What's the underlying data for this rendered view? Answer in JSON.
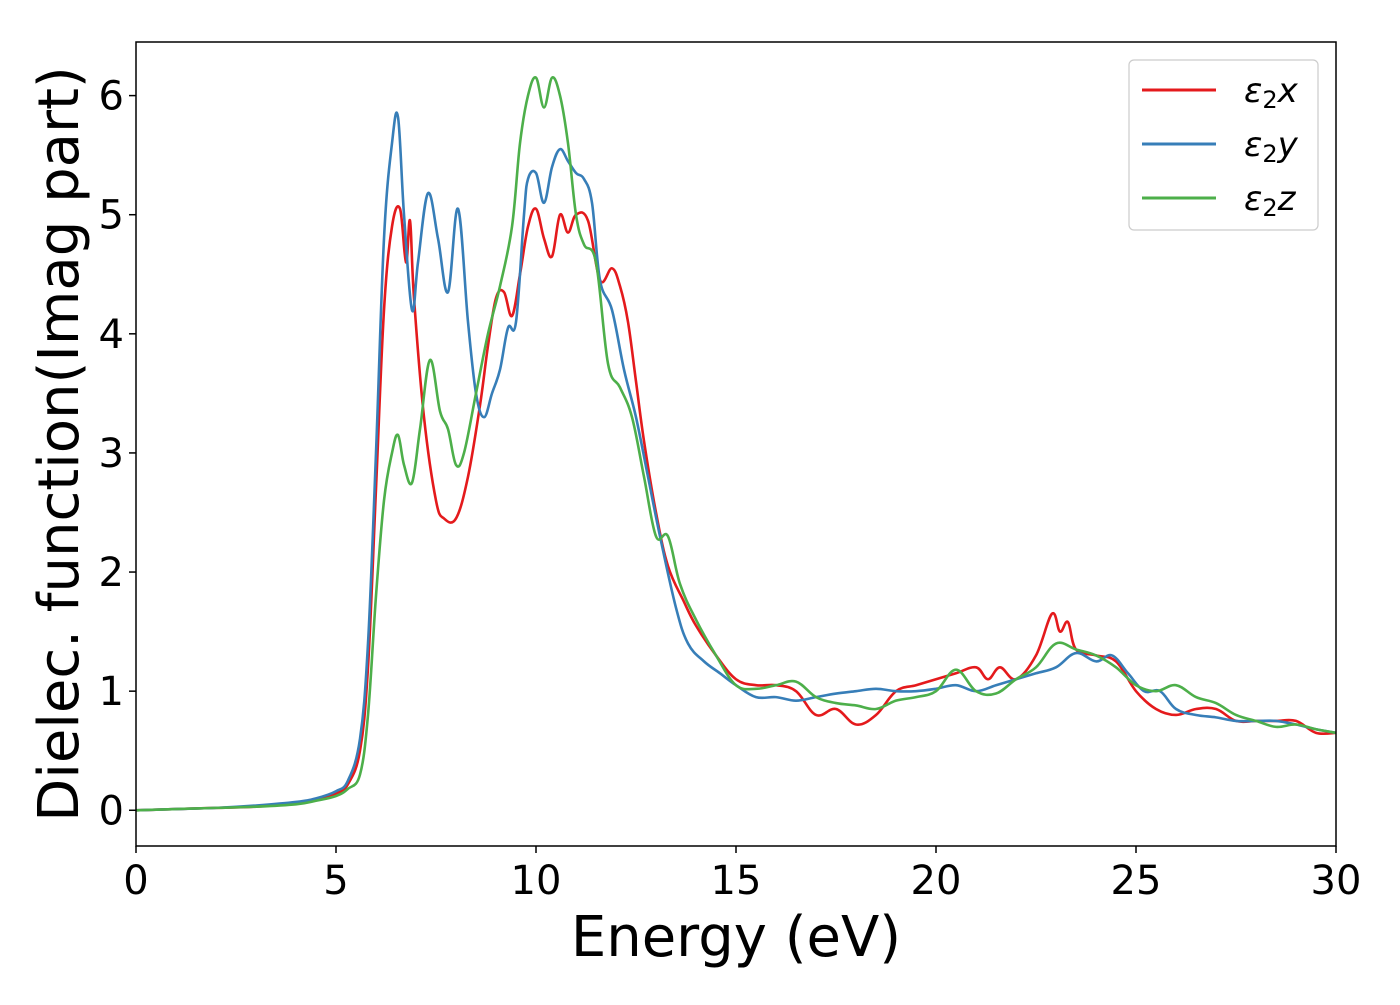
{
  "chart_data": {
    "type": "line",
    "title": "",
    "xlabel": "Energy (eV)",
    "ylabel": "Dielec. function(Imag part)",
    "xlim": [
      0,
      30
    ],
    "ylim": [
      -0.3,
      6.45
    ],
    "xticks": [
      0,
      5,
      10,
      15,
      20,
      25,
      30
    ],
    "yticks": [
      0,
      1,
      2,
      3,
      4,
      5,
      6
    ],
    "grid": false,
    "legend_position": "top-right",
    "series": [
      {
        "name_base": "ε",
        "name_sub": "2",
        "name_suffix": "x",
        "color": "#e41a1c",
        "x": [
          0,
          1,
          2,
          3,
          4,
          4.5,
          5,
          5.3,
          5.6,
          5.8,
          6.0,
          6.2,
          6.4,
          6.6,
          6.75,
          6.85,
          6.95,
          7.2,
          7.5,
          7.7,
          8.0,
          8.3,
          8.6,
          8.8,
          9.0,
          9.2,
          9.4,
          9.6,
          9.8,
          10.0,
          10.2,
          10.4,
          10.6,
          10.8,
          11.0,
          11.3,
          11.6,
          11.9,
          12.1,
          12.3,
          12.5,
          12.7,
          13.0,
          13.3,
          13.7,
          14.0,
          14.5,
          15.0,
          15.5,
          16.0,
          16.5,
          17.0,
          17.5,
          18.0,
          18.5,
          19.0,
          19.5,
          20.0,
          20.5,
          21.0,
          21.3,
          21.6,
          22.0,
          22.5,
          22.9,
          23.1,
          23.3,
          23.5,
          24.0,
          24.5,
          25.0,
          25.5,
          26.0,
          26.5,
          27.0,
          27.5,
          28.0,
          28.5,
          29.0,
          29.5,
          30.0
        ],
        "y": [
          0.0,
          0.01,
          0.02,
          0.03,
          0.06,
          0.09,
          0.14,
          0.22,
          0.5,
          1.2,
          2.7,
          4.2,
          4.9,
          5.05,
          4.6,
          4.95,
          4.3,
          3.3,
          2.6,
          2.45,
          2.45,
          2.8,
          3.4,
          3.9,
          4.3,
          4.35,
          4.15,
          4.5,
          4.9,
          5.05,
          4.8,
          4.65,
          5.0,
          4.85,
          5.0,
          4.95,
          4.45,
          4.55,
          4.4,
          4.1,
          3.6,
          3.1,
          2.5,
          2.05,
          1.75,
          1.55,
          1.3,
          1.1,
          1.05,
          1.05,
          1.0,
          0.8,
          0.85,
          0.72,
          0.8,
          1.0,
          1.05,
          1.1,
          1.15,
          1.2,
          1.1,
          1.2,
          1.1,
          1.3,
          1.65,
          1.5,
          1.58,
          1.35,
          1.3,
          1.25,
          1.0,
          0.85,
          0.8,
          0.85,
          0.85,
          0.75,
          0.75,
          0.75,
          0.75,
          0.65,
          0.65
        ]
      },
      {
        "name_base": "ε",
        "name_sub": "2",
        "name_suffix": "y",
        "color": "#377eb8",
        "x": [
          0,
          1,
          2,
          3,
          4,
          4.5,
          5,
          5.3,
          5.6,
          5.8,
          6.0,
          6.2,
          6.4,
          6.55,
          6.7,
          6.9,
          7.05,
          7.3,
          7.55,
          7.8,
          8.05,
          8.3,
          8.5,
          8.7,
          8.9,
          9.1,
          9.3,
          9.5,
          9.7,
          9.8,
          10.0,
          10.2,
          10.4,
          10.6,
          10.8,
          11.0,
          11.2,
          11.4,
          11.6,
          11.9,
          12.2,
          12.5,
          12.8,
          13.1,
          13.5,
          13.8,
          14.2,
          14.6,
          15.0,
          15.5,
          16.0,
          16.5,
          17.0,
          17.5,
          18.0,
          18.5,
          19.0,
          19.5,
          20.0,
          20.5,
          21.0,
          21.5,
          22.0,
          22.5,
          23.0,
          23.5,
          24.0,
          24.4,
          24.8,
          25.2,
          25.6,
          26.0,
          26.5,
          27.0,
          27.5,
          28.0,
          28.5,
          29.0,
          29.5,
          30.0
        ],
        "y": [
          0.0,
          0.01,
          0.02,
          0.04,
          0.07,
          0.1,
          0.16,
          0.25,
          0.6,
          1.4,
          3.0,
          4.8,
          5.6,
          5.82,
          5.0,
          4.2,
          4.6,
          5.18,
          4.8,
          4.35,
          5.05,
          4.1,
          3.5,
          3.3,
          3.5,
          3.7,
          4.05,
          4.1,
          5.0,
          5.3,
          5.35,
          5.1,
          5.4,
          5.55,
          5.45,
          5.35,
          5.3,
          5.1,
          4.45,
          4.2,
          3.7,
          3.3,
          2.8,
          2.3,
          1.7,
          1.4,
          1.25,
          1.15,
          1.05,
          0.95,
          0.95,
          0.92,
          0.95,
          0.98,
          1.0,
          1.02,
          1.0,
          1.0,
          1.02,
          1.05,
          1.0,
          1.05,
          1.1,
          1.15,
          1.2,
          1.32,
          1.25,
          1.3,
          1.15,
          1.0,
          1.0,
          0.85,
          0.8,
          0.78,
          0.75,
          0.75,
          0.75,
          0.72,
          0.68,
          0.65
        ]
      },
      {
        "name_base": "ε",
        "name_sub": "2",
        "name_suffix": "z",
        "color": "#4daf4a",
        "x": [
          0,
          1,
          2,
          3,
          4,
          4.5,
          5,
          5.3,
          5.6,
          5.8,
          6.0,
          6.2,
          6.4,
          6.55,
          6.7,
          6.9,
          7.1,
          7.35,
          7.6,
          7.8,
          8.0,
          8.2,
          8.5,
          8.8,
          9.1,
          9.4,
          9.6,
          9.8,
          10.0,
          10.2,
          10.4,
          10.6,
          10.8,
          11.0,
          11.2,
          11.5,
          11.8,
          12.1,
          12.4,
          12.7,
          13.0,
          13.3,
          13.6,
          14.0,
          14.5,
          15.0,
          15.5,
          16.0,
          16.5,
          17.0,
          17.5,
          18.0,
          18.5,
          19.0,
          19.5,
          20.0,
          20.5,
          21.0,
          21.5,
          22.0,
          22.5,
          23.0,
          23.5,
          24.0,
          24.5,
          25.0,
          25.5,
          26.0,
          26.5,
          27.0,
          27.5,
          28.0,
          28.5,
          29.0,
          29.5,
          30.0
        ],
        "y": [
          0.0,
          0.01,
          0.02,
          0.03,
          0.05,
          0.08,
          0.12,
          0.18,
          0.3,
          0.8,
          1.8,
          2.6,
          3.0,
          3.15,
          2.9,
          2.75,
          3.2,
          3.78,
          3.35,
          3.2,
          2.9,
          3.0,
          3.5,
          4.0,
          4.4,
          4.9,
          5.6,
          6.0,
          6.15,
          5.9,
          6.15,
          6.0,
          5.6,
          5.0,
          4.75,
          4.6,
          3.75,
          3.55,
          3.3,
          2.8,
          2.3,
          2.3,
          1.9,
          1.6,
          1.3,
          1.05,
          1.02,
          1.05,
          1.08,
          0.95,
          0.9,
          0.88,
          0.85,
          0.92,
          0.95,
          1.0,
          1.18,
          1.0,
          0.98,
          1.1,
          1.2,
          1.4,
          1.35,
          1.3,
          1.2,
          1.05,
          1.0,
          1.05,
          0.95,
          0.9,
          0.8,
          0.75,
          0.7,
          0.72,
          0.68,
          0.65
        ]
      }
    ]
  }
}
